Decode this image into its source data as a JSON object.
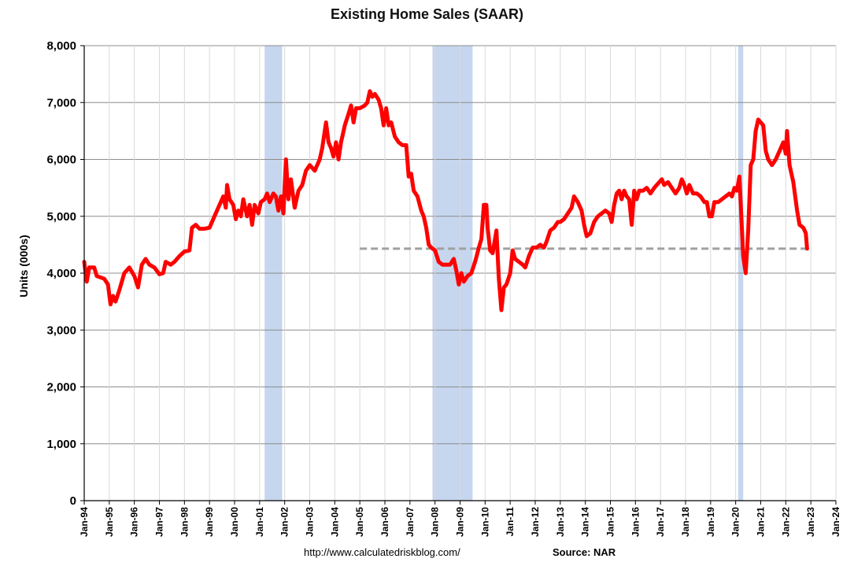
{
  "chart_data": {
    "type": "line",
    "title": "Existing Home Sales (SAAR)",
    "xlabel": "",
    "ylabel": "Units (000s)",
    "ylim": [
      0,
      8000
    ],
    "yticks": [
      0,
      1000,
      2000,
      3000,
      4000,
      5000,
      6000,
      7000,
      8000
    ],
    "ytick_labels": [
      "0",
      "1,000",
      "2,000",
      "3,000",
      "4,000",
      "5,000",
      "6,000",
      "7,000",
      "8,000"
    ],
    "xlim": [
      1994.0,
      2024.0
    ],
    "xticks": [
      1994,
      1995,
      1996,
      1997,
      1998,
      1999,
      2000,
      2001,
      2002,
      2003,
      2004,
      2005,
      2006,
      2007,
      2008,
      2009,
      2010,
      2011,
      2012,
      2013,
      2014,
      2015,
      2016,
      2017,
      2018,
      2019,
      2020,
      2021,
      2022,
      2023,
      2024
    ],
    "xtick_labels": [
      "Jan-94",
      "Jan-95",
      "Jan-96",
      "Jan-97",
      "Jan-98",
      "Jan-99",
      "Jan-00",
      "Jan-01",
      "Jan-02",
      "Jan-03",
      "Jan-04",
      "Jan-05",
      "Jan-06",
      "Jan-07",
      "Jan-08",
      "Jan-09",
      "Jan-10",
      "Jan-11",
      "Jan-12",
      "Jan-13",
      "Jan-14",
      "Jan-15",
      "Jan-16",
      "Jan-17",
      "Jan-18",
      "Jan-19",
      "Jan-20",
      "Jan-21",
      "Jan-22",
      "Jan-23",
      "Jan-24"
    ],
    "grid": true,
    "series_color": "#ff0000",
    "recessions": [
      [
        2001.2,
        2001.9
      ],
      [
        2007.9,
        2009.5
      ],
      [
        2020.1,
        2020.3
      ]
    ],
    "recession_color": "#c5d6ee",
    "reference_line": {
      "value": 4430,
      "from": 2005.0,
      "to": 2023.0,
      "color": "#a0a0a0",
      "style": "dashed"
    },
    "series": [
      {
        "values": [
          [
            1994.0,
            4200
          ],
          [
            1994.1,
            3850
          ],
          [
            1994.2,
            4100
          ],
          [
            1994.4,
            4100
          ],
          [
            1994.5,
            3950
          ],
          [
            1994.8,
            3900
          ],
          [
            1994.95,
            3800
          ],
          [
            1995.05,
            3450
          ],
          [
            1995.15,
            3600
          ],
          [
            1995.25,
            3500
          ],
          [
            1995.4,
            3700
          ],
          [
            1995.6,
            4000
          ],
          [
            1995.8,
            4100
          ],
          [
            1996.0,
            3950
          ],
          [
            1996.15,
            3750
          ],
          [
            1996.3,
            4150
          ],
          [
            1996.45,
            4250
          ],
          [
            1996.6,
            4150
          ],
          [
            1996.8,
            4100
          ],
          [
            1997.0,
            3980
          ],
          [
            1997.15,
            4000
          ],
          [
            1997.25,
            4200
          ],
          [
            1997.45,
            4150
          ],
          [
            1997.6,
            4200
          ],
          [
            1997.8,
            4300
          ],
          [
            1998.0,
            4380
          ],
          [
            1998.2,
            4400
          ],
          [
            1998.3,
            4800
          ],
          [
            1998.45,
            4850
          ],
          [
            1998.6,
            4780
          ],
          [
            1998.8,
            4780
          ],
          [
            1999.0,
            4800
          ],
          [
            1999.2,
            5000
          ],
          [
            1999.4,
            5200
          ],
          [
            1999.55,
            5350
          ],
          [
            1999.65,
            5150
          ],
          [
            1999.7,
            5550
          ],
          [
            1999.8,
            5300
          ],
          [
            1999.95,
            5200
          ],
          [
            2000.05,
            4950
          ],
          [
            2000.15,
            5100
          ],
          [
            2000.25,
            5000
          ],
          [
            2000.35,
            5300
          ],
          [
            2000.5,
            5000
          ],
          [
            2000.6,
            5200
          ],
          [
            2000.7,
            4850
          ],
          [
            2000.8,
            5200
          ],
          [
            2000.95,
            5050
          ],
          [
            2001.05,
            5250
          ],
          [
            2001.2,
            5300
          ],
          [
            2001.3,
            5400
          ],
          [
            2001.4,
            5250
          ],
          [
            2001.55,
            5400
          ],
          [
            2001.65,
            5350
          ],
          [
            2001.75,
            5100
          ],
          [
            2001.85,
            5350
          ],
          [
            2001.95,
            5050
          ],
          [
            2002.05,
            6000
          ],
          [
            2002.15,
            5300
          ],
          [
            2002.25,
            5650
          ],
          [
            2002.4,
            5150
          ],
          [
            2002.55,
            5450
          ],
          [
            2002.7,
            5550
          ],
          [
            2002.85,
            5800
          ],
          [
            2003.0,
            5900
          ],
          [
            2003.2,
            5800
          ],
          [
            2003.4,
            6000
          ],
          [
            2003.5,
            6200
          ],
          [
            2003.65,
            6650
          ],
          [
            2003.75,
            6300
          ],
          [
            2003.85,
            6200
          ],
          [
            2003.95,
            6050
          ],
          [
            2004.05,
            6300
          ],
          [
            2004.15,
            6000
          ],
          [
            2004.25,
            6300
          ],
          [
            2004.4,
            6600
          ],
          [
            2004.55,
            6800
          ],
          [
            2004.65,
            6950
          ],
          [
            2004.75,
            6650
          ],
          [
            2004.85,
            6900
          ],
          [
            2005.0,
            6900
          ],
          [
            2005.2,
            6950
          ],
          [
            2005.3,
            7000
          ],
          [
            2005.4,
            7200
          ],
          [
            2005.5,
            7100
          ],
          [
            2005.6,
            7150
          ],
          [
            2005.75,
            7050
          ],
          [
            2005.85,
            6900
          ],
          [
            2005.95,
            6600
          ],
          [
            2006.05,
            6900
          ],
          [
            2006.15,
            6600
          ],
          [
            2006.25,
            6650
          ],
          [
            2006.4,
            6400
          ],
          [
            2006.55,
            6300
          ],
          [
            2006.7,
            6250
          ],
          [
            2006.85,
            6250
          ],
          [
            2006.95,
            5700
          ],
          [
            2007.05,
            5750
          ],
          [
            2007.15,
            5450
          ],
          [
            2007.3,
            5350
          ],
          [
            2007.45,
            5100
          ],
          [
            2007.55,
            5000
          ],
          [
            2007.65,
            4800
          ],
          [
            2007.75,
            4500
          ],
          [
            2007.85,
            4450
          ],
          [
            2008.0,
            4400
          ],
          [
            2008.15,
            4200
          ],
          [
            2008.3,
            4150
          ],
          [
            2008.45,
            4150
          ],
          [
            2008.6,
            4150
          ],
          [
            2008.75,
            4250
          ],
          [
            2008.85,
            4050
          ],
          [
            2008.95,
            3800
          ],
          [
            2009.05,
            4000
          ],
          [
            2009.15,
            3850
          ],
          [
            2009.3,
            3950
          ],
          [
            2009.45,
            4000
          ],
          [
            2009.6,
            4200
          ],
          [
            2009.75,
            4450
          ],
          [
            2009.85,
            4600
          ],
          [
            2009.95,
            5200
          ],
          [
            2010.05,
            5200
          ],
          [
            2010.1,
            4800
          ],
          [
            2010.2,
            4400
          ],
          [
            2010.3,
            4350
          ],
          [
            2010.45,
            4750
          ],
          [
            2010.55,
            3900
          ],
          [
            2010.65,
            3350
          ],
          [
            2010.75,
            3750
          ],
          [
            2010.85,
            3800
          ],
          [
            2011.0,
            4000
          ],
          [
            2011.1,
            4400
          ],
          [
            2011.2,
            4250
          ],
          [
            2011.35,
            4200
          ],
          [
            2011.5,
            4150
          ],
          [
            2011.6,
            4100
          ],
          [
            2011.75,
            4300
          ],
          [
            2011.9,
            4450
          ],
          [
            2012.05,
            4450
          ],
          [
            2012.2,
            4500
          ],
          [
            2012.35,
            4450
          ],
          [
            2012.45,
            4550
          ],
          [
            2012.6,
            4750
          ],
          [
            2012.75,
            4800
          ],
          [
            2012.9,
            4900
          ],
          [
            2013.0,
            4900
          ],
          [
            2013.15,
            4950
          ],
          [
            2013.3,
            5050
          ],
          [
            2013.45,
            5150
          ],
          [
            2013.55,
            5350
          ],
          [
            2013.7,
            5250
          ],
          [
            2013.85,
            5100
          ],
          [
            2013.95,
            4850
          ],
          [
            2014.05,
            4650
          ],
          [
            2014.2,
            4700
          ],
          [
            2014.35,
            4900
          ],
          [
            2014.5,
            5000
          ],
          [
            2014.65,
            5050
          ],
          [
            2014.8,
            5100
          ],
          [
            2014.95,
            5050
          ],
          [
            2015.05,
            4900
          ],
          [
            2015.15,
            5200
          ],
          [
            2015.25,
            5400
          ],
          [
            2015.35,
            5450
          ],
          [
            2015.45,
            5300
          ],
          [
            2015.55,
            5450
          ],
          [
            2015.65,
            5350
          ],
          [
            2015.75,
            5300
          ],
          [
            2015.85,
            4850
          ],
          [
            2015.95,
            5450
          ],
          [
            2016.05,
            5300
          ],
          [
            2016.15,
            5450
          ],
          [
            2016.3,
            5450
          ],
          [
            2016.45,
            5500
          ],
          [
            2016.6,
            5400
          ],
          [
            2016.75,
            5500
          ],
          [
            2016.85,
            5550
          ],
          [
            2016.95,
            5600
          ],
          [
            2017.05,
            5650
          ],
          [
            2017.15,
            5550
          ],
          [
            2017.3,
            5600
          ],
          [
            2017.45,
            5500
          ],
          [
            2017.6,
            5400
          ],
          [
            2017.75,
            5500
          ],
          [
            2017.85,
            5650
          ],
          [
            2017.95,
            5550
          ],
          [
            2018.05,
            5400
          ],
          [
            2018.15,
            5550
          ],
          [
            2018.3,
            5400
          ],
          [
            2018.45,
            5400
          ],
          [
            2018.6,
            5350
          ],
          [
            2018.75,
            5250
          ],
          [
            2018.85,
            5250
          ],
          [
            2018.95,
            5000
          ],
          [
            2019.05,
            5000
          ],
          [
            2019.15,
            5250
          ],
          [
            2019.3,
            5250
          ],
          [
            2019.45,
            5300
          ],
          [
            2019.6,
            5350
          ],
          [
            2019.75,
            5400
          ],
          [
            2019.85,
            5350
          ],
          [
            2019.95,
            5500
          ],
          [
            2020.05,
            5450
          ],
          [
            2020.15,
            5700
          ],
          [
            2020.2,
            5250
          ],
          [
            2020.3,
            4300
          ],
          [
            2020.4,
            4000
          ],
          [
            2020.5,
            4750
          ],
          [
            2020.6,
            5900
          ],
          [
            2020.7,
            6000
          ],
          [
            2020.8,
            6500
          ],
          [
            2020.9,
            6700
          ],
          [
            2021.0,
            6650
          ],
          [
            2021.1,
            6600
          ],
          [
            2021.2,
            6150
          ],
          [
            2021.3,
            6000
          ],
          [
            2021.45,
            5900
          ],
          [
            2021.6,
            6000
          ],
          [
            2021.7,
            6100
          ],
          [
            2021.8,
            6200
          ],
          [
            2021.9,
            6300
          ],
          [
            2022.0,
            6100
          ],
          [
            2022.05,
            6500
          ],
          [
            2022.15,
            5900
          ],
          [
            2022.3,
            5600
          ],
          [
            2022.45,
            5100
          ],
          [
            2022.55,
            4850
          ],
          [
            2022.7,
            4800
          ],
          [
            2022.8,
            4700
          ],
          [
            2022.85,
            4430
          ]
        ]
      }
    ]
  },
  "footer": {
    "url": "http://www.calculatedriskblog.com/",
    "source": "Source: NAR"
  }
}
